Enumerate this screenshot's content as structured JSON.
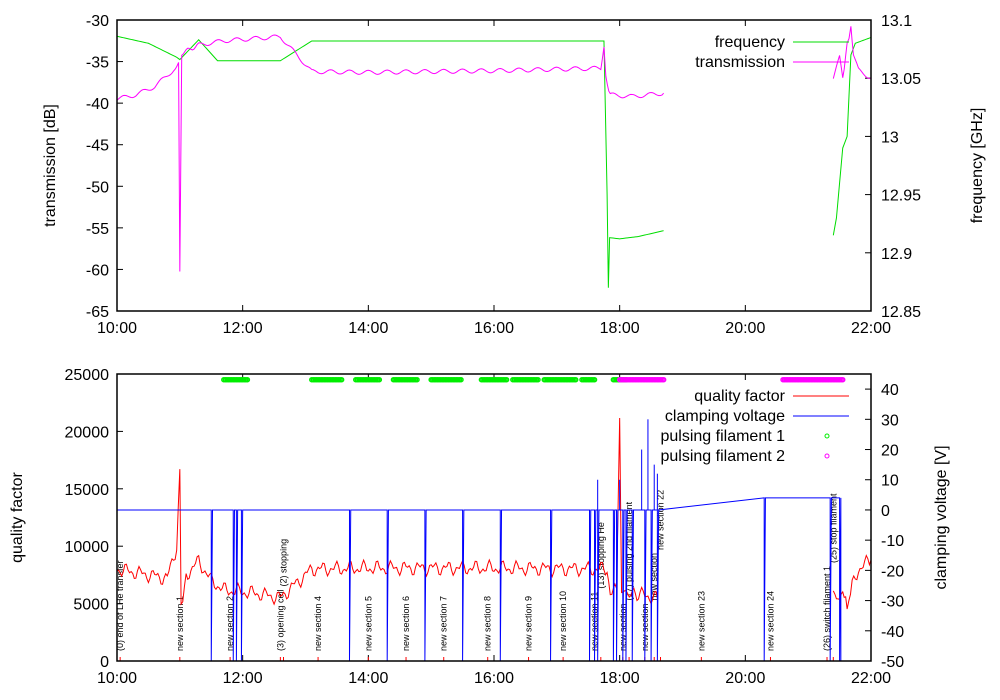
{
  "chart_data": [
    {
      "type": "line",
      "title": "",
      "xlabel": "",
      "ylabel": "transmission [dB]",
      "y2label": "frequency [GHz]",
      "xlim_hours": [
        10,
        22
      ],
      "ylim": [
        -65,
        -30
      ],
      "y2lim": [
        12.85,
        13.1
      ],
      "xticks": [
        "10:00",
        "12:00",
        "14:00",
        "16:00",
        "18:00",
        "20:00",
        "22:00"
      ],
      "yticks": [
        "-30",
        "-35",
        "-40",
        "-45",
        "-50",
        "-55",
        "-60",
        "-65"
      ],
      "y2ticks": [
        "13.1",
        "13.05",
        "13",
        "12.95",
        "12.9",
        "12.85"
      ],
      "legend_position": "top-right",
      "series": [
        {
          "name": "frequency",
          "color": "#00dd00",
          "axis": "y2",
          "segments": [
            [
              [
                10,
                13.086
              ],
              [
                10.5,
                13.08
              ],
              [
                10.95,
                13.068
              ],
              [
                11.0,
                13.066
              ],
              [
                11.3,
                13.083
              ],
              [
                11.6,
                13.065
              ],
              [
                12.6,
                13.065
              ],
              [
                13.1,
                13.082
              ],
              [
                17.75,
                13.082
              ],
              [
                17.8,
                12.95
              ],
              [
                17.82,
                12.87
              ],
              [
                17.84,
                12.913
              ],
              [
                18.0,
                12.912
              ],
              [
                18.3,
                12.914
              ],
              [
                18.7,
                12.919
              ]
            ],
            [
              [
                21.4,
                12.915
              ],
              [
                21.45,
                12.93
              ],
              [
                21.5,
                12.96
              ],
              [
                21.55,
                12.99
              ],
              [
                21.62,
                13.0
              ],
              [
                21.68,
                13.07
              ],
              [
                21.75,
                13.08
              ],
              [
                22,
                13.085
              ]
            ]
          ]
        },
        {
          "name": "transmission",
          "color": "#ff00ff",
          "axis": "y",
          "segments": [
            [
              [
                10,
                -39.5
              ],
              [
                10.3,
                -39
              ],
              [
                10.6,
                -38
              ],
              [
                10.9,
                -36
              ],
              [
                10.98,
                -35
              ],
              [
                11.0,
                -60.5
              ],
              [
                11.03,
                -34
              ],
              [
                11.3,
                -33
              ],
              [
                11.7,
                -32.5
              ],
              [
                12.6,
                -32
              ],
              [
                13.1,
                -36.2
              ],
              [
                14,
                -36.3
              ],
              [
                16,
                -36.1
              ],
              [
                17.7,
                -35.8
              ],
              [
                17.75,
                -33
              ],
              [
                17.78,
                -37
              ],
              [
                17.85,
                -39
              ],
              [
                18.2,
                -39.2
              ],
              [
                18.7,
                -38.8
              ]
            ],
            [
              [
                21.4,
                -37
              ],
              [
                21.5,
                -34.5
              ],
              [
                21.55,
                -37
              ],
              [
                21.62,
                -33
              ],
              [
                21.68,
                -31
              ],
              [
                21.72,
                -34
              ],
              [
                21.8,
                -36
              ],
              [
                22,
                -37
              ]
            ]
          ]
        }
      ]
    },
    {
      "type": "line",
      "title": "",
      "xlabel": "",
      "ylabel": "quality factor",
      "y2label": "clamping voltage [V]",
      "xlim_hours": [
        10,
        22
      ],
      "ylim": [
        0,
        25000
      ],
      "y2lim": [
        -50,
        45
      ],
      "xticks": [
        "10:00",
        "12:00",
        "14:00",
        "16:00",
        "18:00",
        "20:00",
        "22:00"
      ],
      "yticks": [
        "25000",
        "20000",
        "15000",
        "10000",
        "5000",
        "0"
      ],
      "y2ticks": [
        "40",
        "30",
        "20",
        "10",
        "0",
        "-10",
        "-20",
        "-30",
        "-40",
        "-50"
      ],
      "legend_position": "top-right",
      "series": [
        {
          "name": "quality factor",
          "color": "#ff0000",
          "axis": "y",
          "segments": [
            [
              [
                10,
                8000
              ],
              [
                10.4,
                7600
              ],
              [
                10.8,
                7200
              ],
              [
                10.95,
                10000
              ],
              [
                11.0,
                16500
              ],
              [
                11.02,
                5000
              ],
              [
                11.1,
                7500
              ],
              [
                11.3,
                8700
              ],
              [
                11.5,
                7000
              ],
              [
                11.7,
                6200
              ],
              [
                12.2,
                5900
              ],
              [
                12.6,
                5500
              ],
              [
                12.9,
                7000
              ],
              [
                13.1,
                8000
              ],
              [
                14,
                8100
              ],
              [
                16,
                8100
              ],
              [
                17.8,
                8000
              ],
              [
                17.85,
                6000
              ],
              [
                17.95,
                6000
              ],
              [
                18.0,
                21500
              ],
              [
                18.03,
                6000
              ],
              [
                18.3,
                5800
              ],
              [
                18.6,
                5500
              ]
            ],
            [
              [
                21.4,
                6000
              ],
              [
                21.5,
                4800
              ],
              [
                21.55,
                6500
              ],
              [
                21.62,
                4700
              ],
              [
                21.7,
                6500
              ],
              [
                21.8,
                8000
              ],
              [
                22,
                8800
              ]
            ]
          ]
        },
        {
          "name": "clamping voltage",
          "color": "#0000ff",
          "axis": "y2",
          "baseline_before_18_7": 0,
          "baseline_after_18_7": 4,
          "drops_to_minus_50_at_hours": [
            11.5,
            11.85,
            11.9,
            11.98,
            13.7,
            14.3,
            14.9,
            15.5,
            16.1,
            16.9,
            17.52,
            17.6,
            17.65,
            17.9,
            17.95,
            18.05,
            18.1,
            18.2,
            18.4,
            18.5,
            18.6,
            20.3,
            21.35,
            21.5
          ],
          "peaks": [
            [
              17.65,
              10
            ],
            [
              18.0,
              10
            ],
            [
              18.35,
              20
            ],
            [
              18.45,
              30
            ],
            [
              18.55,
              15
            ],
            [
              18.6,
              12
            ]
          ]
        },
        {
          "name": "pulsing filament 1",
          "color": "#00ee00",
          "type": "points",
          "value": 24500,
          "intervals_hours": [
            [
              11.7,
              12.1
            ],
            [
              13.1,
              13.6
            ],
            [
              13.8,
              14.2
            ],
            [
              14.4,
              14.8
            ],
            [
              15.0,
              15.5
            ],
            [
              15.8,
              16.2
            ],
            [
              16.3,
              16.7
            ],
            [
              16.8,
              17.3
            ],
            [
              17.4,
              17.6
            ],
            [
              17.9,
              18.1
            ]
          ]
        },
        {
          "name": "pulsing filament 2",
          "color": "#ff00ff",
          "type": "points",
          "value": 24500,
          "intervals_hours": [
            [
              18.0,
              18.7
            ],
            [
              20.6,
              21.55
            ]
          ]
        }
      ],
      "annotations": [
        {
          "hour": 10.05,
          "text": "(0) end of LHe transfer"
        },
        {
          "hour": 11.0,
          "text": "new section 1"
        },
        {
          "hour": 11.8,
          "text": "new section 2"
        },
        {
          "hour": 12.6,
          "text": "(3) opening cell"
        },
        {
          "hour": 12.65,
          "text": "(2) stopping"
        },
        {
          "hour": 13.2,
          "text": "new section 4"
        },
        {
          "hour": 14.0,
          "text": "new section 5"
        },
        {
          "hour": 14.6,
          "text": "new section 6"
        },
        {
          "hour": 15.2,
          "text": "new section 7"
        },
        {
          "hour": 15.9,
          "text": "new section 8"
        },
        {
          "hour": 16.55,
          "text": "new section 9"
        },
        {
          "hour": 17.1,
          "text": "new section 10"
        },
        {
          "hour": 17.6,
          "text": "new section 11"
        },
        {
          "hour": 17.7,
          "text": "(13) stopping He"
        },
        {
          "hour": 18.05,
          "text": "new section"
        },
        {
          "hour": 18.15,
          "text": "(17) pulsing 2nd filament"
        },
        {
          "hour": 18.4,
          "text": "new section"
        },
        {
          "hour": 18.55,
          "text": "new section"
        },
        {
          "hour": 18.65,
          "text": "new section 22"
        },
        {
          "hour": 19.3,
          "text": "new section 23"
        },
        {
          "hour": 20.4,
          "text": "new section 24"
        },
        {
          "hour": 21.3,
          "text": "(26) switch filament 1"
        },
        {
          "hour": 21.4,
          "text": "(25) stop filament"
        }
      ]
    }
  ]
}
